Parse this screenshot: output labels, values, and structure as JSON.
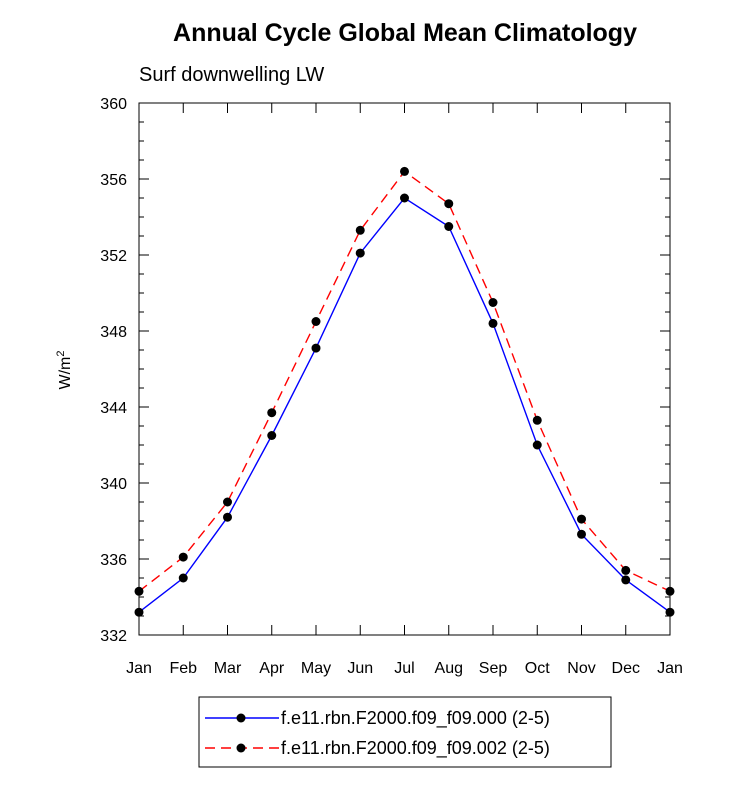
{
  "chart_data": {
    "type": "line",
    "title": "Annual Cycle Global Mean Climatology",
    "subtitle": "Surf downwelling LW",
    "ylabel": "W/m",
    "ylabel_sup": "2",
    "xlabel": "",
    "categories": [
      "Jan",
      "Feb",
      "Mar",
      "Apr",
      "May",
      "Jun",
      "Jul",
      "Aug",
      "Sep",
      "Oct",
      "Nov",
      "Dec",
      "Jan"
    ],
    "ylim": [
      332,
      360
    ],
    "yticks": [
      332,
      336,
      340,
      344,
      348,
      352,
      356,
      360
    ],
    "grid": false,
    "legend_position": "bottom-center",
    "series": [
      {
        "name": "f.e11.rbn.F2000.f09_f09.000 (2-5)",
        "color": "#0000ff",
        "line_style": "solid",
        "marker": "filled-circle",
        "marker_color": "#000000",
        "values": [
          333.2,
          335.0,
          338.2,
          342.5,
          347.1,
          352.1,
          355.0,
          353.5,
          348.4,
          342.0,
          337.3,
          334.9,
          333.2
        ]
      },
      {
        "name": "f.e11.rbn.F2000.f09_f09.002 (2-5)",
        "color": "#ff0000",
        "line_style": "dashed",
        "marker": "filled-circle",
        "marker_color": "#000000",
        "values": [
          334.3,
          336.1,
          339.0,
          343.7,
          348.5,
          353.3,
          356.4,
          354.7,
          349.5,
          343.3,
          338.1,
          335.4,
          334.3
        ]
      }
    ]
  }
}
